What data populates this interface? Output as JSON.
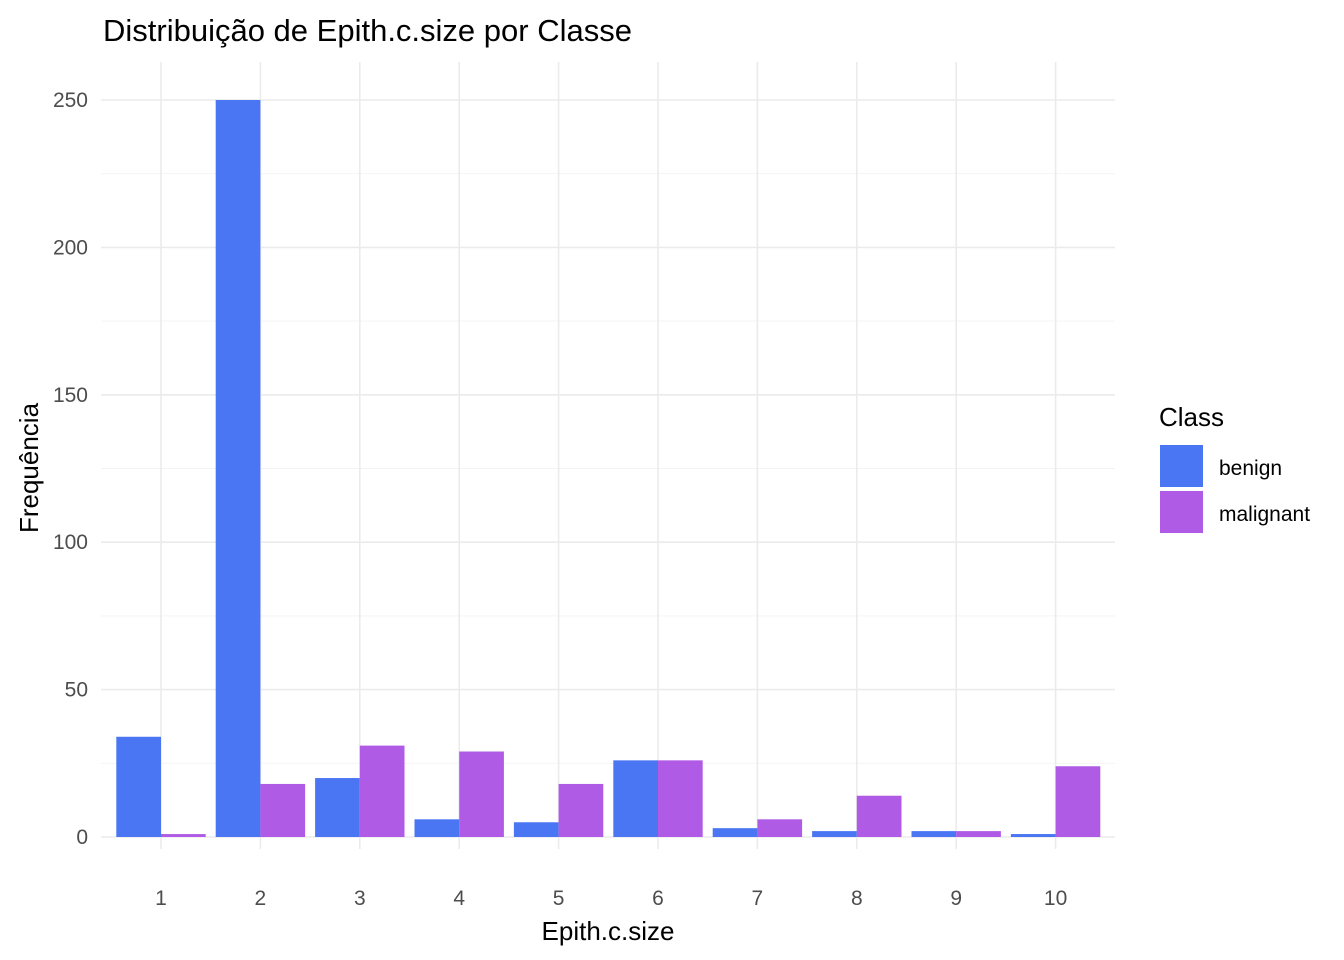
{
  "chart_data": {
    "type": "bar",
    "title": "Distribuição de Epith.c.size por Classe",
    "xlabel": "Epith.c.size",
    "ylabel": "Frequência",
    "categories": [
      "1",
      "2",
      "3",
      "4",
      "5",
      "6",
      "7",
      "8",
      "9",
      "10"
    ],
    "series": [
      {
        "name": "benign",
        "color": "#4a76f3",
        "values": [
          34,
          250,
          20,
          6,
          5,
          26,
          3,
          2,
          2,
          1
        ]
      },
      {
        "name": "malignant",
        "color": "#b05be6",
        "values": [
          1,
          18,
          31,
          29,
          18,
          26,
          6,
          14,
          2,
          24
        ]
      }
    ],
    "ylim": [
      0,
      250
    ],
    "yticks": [
      0,
      50,
      100,
      150,
      200,
      250
    ],
    "grid": true,
    "legend": {
      "title": "Class",
      "placement": "right"
    }
  }
}
